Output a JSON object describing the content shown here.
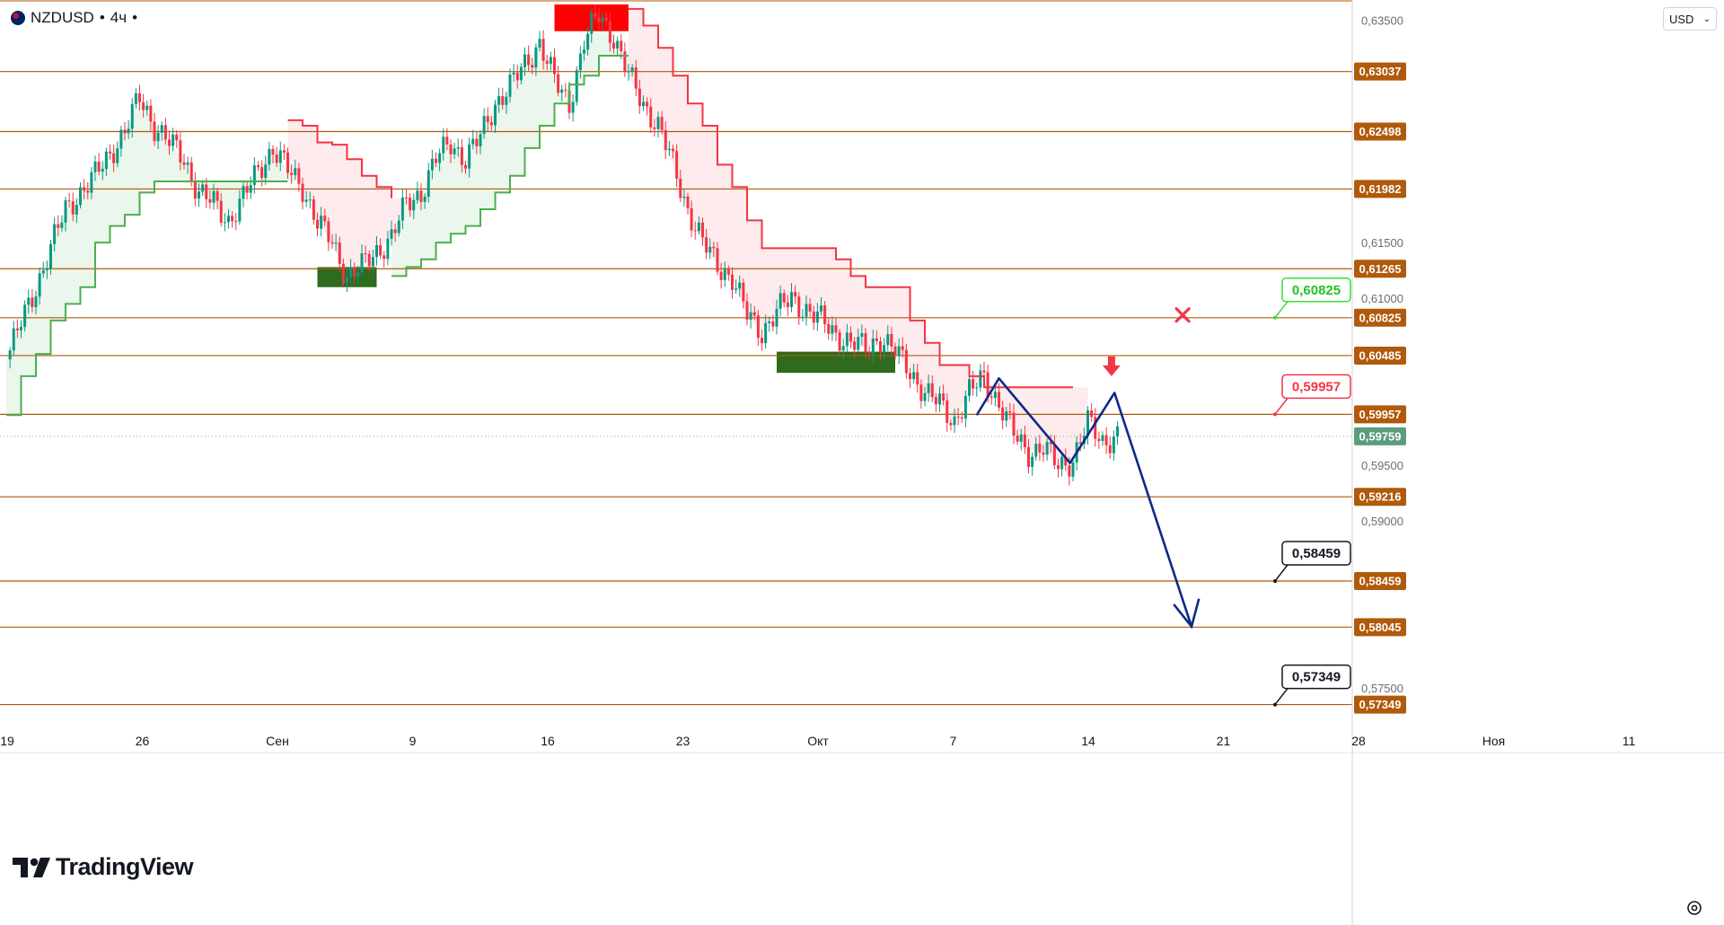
{
  "header": {
    "symbol": "NZDUSD",
    "timeframe": "4ч",
    "currency": "USD"
  },
  "branding": {
    "logo_text": "TradingView"
  },
  "colors": {
    "level_line": "#b05a0b",
    "uptrend": "#4caf50",
    "downtrend": "#f23645",
    "up_fill": "#e8f5e9",
    "down_fill": "#fde8ea",
    "candle_up": "#089981",
    "candle_down": "#f23645",
    "forecast": "#0d2a8a",
    "zone_green": "#2e6b1e",
    "zone_red": "#ff0000",
    "price_badge": "#5b9c7c"
  },
  "chart_data": {
    "type": "candlestick",
    "instrument": "NZDUSD",
    "timeframe": "4ч",
    "x_labels": [
      "19",
      "26",
      "Сен",
      "9",
      "16",
      "23",
      "Окт",
      "7",
      "14",
      "21",
      "28",
      "Ноя",
      "11"
    ],
    "y_ticks": [
      "0,63500",
      "0,61500",
      "0,61000",
      "0,59500",
      "0,59000",
      "0,57500"
    ],
    "ylim": [
      0.5716,
      0.6368
    ],
    "current_price": "0,59759",
    "levels": [
      {
        "value": 0.63037,
        "label": "0,63037"
      },
      {
        "value": 0.62498,
        "label": "0,62498"
      },
      {
        "value": 0.61982,
        "label": "0,61982"
      },
      {
        "value": 0.61265,
        "label": "0,61265"
      },
      {
        "value": 0.60825,
        "label": "0,60825"
      },
      {
        "value": 0.60485,
        "label": "0,60485"
      },
      {
        "value": 0.59957,
        "label": "0,59957"
      },
      {
        "value": 0.59216,
        "label": "0,59216"
      },
      {
        "value": 0.58459,
        "label": "0,58459"
      },
      {
        "value": 0.58045,
        "label": "0,58045"
      },
      {
        "value": 0.57349,
        "label": "0,57349"
      }
    ],
    "callouts": [
      {
        "label": "0,60825",
        "style": "stop",
        "value": 0.60825
      },
      {
        "label": "0,59957",
        "style": "entry",
        "value": 0.59957
      },
      {
        "label": "0,58459",
        "style": "target",
        "value": 0.58459
      },
      {
        "label": "0,57349",
        "style": "target",
        "value": 0.57349
      }
    ],
    "price_path": [
      [
        0,
        0.6045
      ],
      [
        2,
        0.611
      ],
      [
        4,
        0.618
      ],
      [
        6,
        0.621
      ],
      [
        8,
        0.625
      ],
      [
        9,
        0.628
      ],
      [
        10,
        0.6255
      ],
      [
        11,
        0.624
      ],
      [
        12,
        0.6225
      ],
      [
        13,
        0.6195
      ],
      [
        14,
        0.6185
      ],
      [
        15,
        0.617
      ],
      [
        16,
        0.619
      ],
      [
        17,
        0.6215
      ],
      [
        18,
        0.6235
      ],
      [
        19,
        0.6215
      ],
      [
        20,
        0.62
      ],
      [
        21,
        0.6168
      ],
      [
        22,
        0.615
      ],
      [
        23,
        0.612
      ],
      [
        24,
        0.6128
      ],
      [
        25,
        0.6142
      ],
      [
        26,
        0.6155
      ],
      [
        27,
        0.6185
      ],
      [
        28,
        0.6195
      ],
      [
        29,
        0.6225
      ],
      [
        30,
        0.624
      ],
      [
        31,
        0.6225
      ],
      [
        32,
        0.6245
      ],
      [
        33,
        0.6275
      ],
      [
        34,
        0.629
      ],
      [
        35,
        0.631
      ],
      [
        36,
        0.633
      ],
      [
        37,
        0.6295
      ],
      [
        38,
        0.6275
      ],
      [
        39,
        0.633
      ],
      [
        40,
        0.6355
      ],
      [
        41,
        0.6335
      ],
      [
        42,
        0.63
      ],
      [
        43,
        0.6275
      ],
      [
        44,
        0.6255
      ],
      [
        45,
        0.622
      ],
      [
        46,
        0.618
      ],
      [
        47,
        0.615
      ],
      [
        48,
        0.613
      ],
      [
        49,
        0.6118
      ],
      [
        50,
        0.6085
      ],
      [
        51,
        0.607
      ],
      [
        52,
        0.6088
      ],
      [
        53,
        0.61
      ],
      [
        54,
        0.609
      ],
      [
        55,
        0.608
      ],
      [
        56,
        0.6068
      ],
      [
        57,
        0.606
      ],
      [
        58,
        0.6055
      ],
      [
        59,
        0.6065
      ],
      [
        60,
        0.6052
      ],
      [
        61,
        0.6035
      ],
      [
        62,
        0.6015
      ],
      [
        63,
        0.6005
      ],
      [
        64,
        0.599
      ],
      [
        65,
        0.6015
      ],
      [
        66,
        0.603
      ],
      [
        67,
        0.6005
      ],
      [
        68,
        0.5978
      ],
      [
        69,
        0.5962
      ],
      [
        70,
        0.5965
      ],
      [
        71,
        0.595
      ],
      [
        72,
        0.5955
      ],
      [
        73,
        0.5988
      ],
      [
        74,
        0.5972
      ],
      [
        75,
        0.5976
      ]
    ],
    "supertrend": [
      {
        "trend": "up",
        "from": 0,
        "to": 19,
        "values": [
          0.5995,
          0.603,
          0.605,
          0.608,
          0.6095,
          0.611,
          0.615,
          0.6165,
          0.6175,
          0.6195,
          0.6205,
          0.6205,
          0.6205,
          0.6205,
          0.6205,
          0.6205,
          0.6205,
          0.6205,
          0.6205,
          0.6205
        ]
      },
      {
        "trend": "down",
        "from": 19,
        "to": 26,
        "values": [
          0.626,
          0.6255,
          0.624,
          0.6238,
          0.6225,
          0.621,
          0.62,
          0.619
        ]
      },
      {
        "trend": "up",
        "from": 26,
        "to": 42,
        "values": [
          0.612,
          0.6128,
          0.6135,
          0.615,
          0.6158,
          0.6165,
          0.618,
          0.6195,
          0.621,
          0.6235,
          0.6255,
          0.6275,
          0.6292,
          0.63,
          0.6318,
          0.6318,
          0.6318
        ]
      },
      {
        "trend": "down",
        "from": 42,
        "to": 72,
        "values": [
          0.636,
          0.6345,
          0.6325,
          0.63,
          0.6275,
          0.6255,
          0.622,
          0.62,
          0.617,
          0.6145,
          0.6145,
          0.6145,
          0.6145,
          0.6145,
          0.6135,
          0.612,
          0.611,
          0.611,
          0.611,
          0.608,
          0.606,
          0.604,
          0.604,
          0.603,
          0.602,
          0.602,
          0.602,
          0.602,
          0.602,
          0.602,
          0.602
        ]
      }
    ],
    "zones": [
      {
        "kind": "demand",
        "x_from": 21.0,
        "x_to": 25.0,
        "y_top": 0.6128,
        "y_bottom": 0.611
      },
      {
        "kind": "supply",
        "x_from": 37.0,
        "x_to": 42.0,
        "y_top": 0.6364,
        "y_bottom": 0.634
      },
      {
        "kind": "demand",
        "x_from": 52.0,
        "x_to": 60.0,
        "y_top": 0.6052,
        "y_bottom": 0.6033
      }
    ],
    "forecast_path": [
      [
        65.5,
        0.5995
      ],
      [
        67.0,
        0.6028
      ],
      [
        71.8,
        0.5952
      ],
      [
        74.8,
        0.6015
      ],
      [
        80.0,
        0.5805
      ]
    ],
    "forecast_arrowhead": [
      [
        78.8,
        0.5825
      ],
      [
        80.0,
        0.5805
      ],
      [
        80.5,
        0.583
      ]
    ],
    "signal_arrow": {
      "x": 74.6,
      "value": 0.603,
      "direction": "down"
    },
    "stop_marker": {
      "x": 79.4,
      "value": 0.6085
    }
  }
}
